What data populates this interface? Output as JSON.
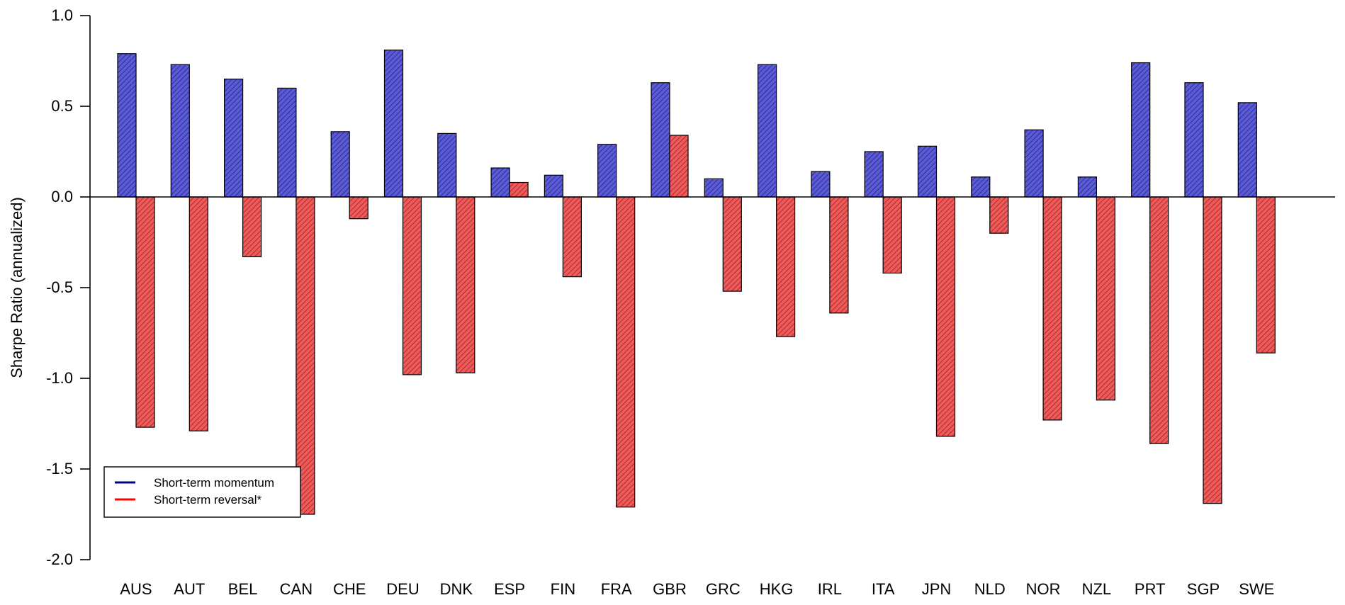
{
  "chart_data": {
    "type": "bar",
    "title": "",
    "xlabel": "",
    "ylabel": "Sharpe Ratio (annualized)",
    "ylim": [
      -2.0,
      1.0
    ],
    "yticks": [
      "1.0",
      "0.5",
      "0.0",
      "-0.5",
      "-1.0",
      "-1.5",
      "-2.0"
    ],
    "ytick_values": [
      1.0,
      0.5,
      0.0,
      -0.5,
      -1.0,
      -1.5,
      -2.0
    ],
    "grid": false,
    "legend_position": "bottom-left",
    "categories": [
      "AUS",
      "AUT",
      "BEL",
      "CAN",
      "CHE",
      "DEU",
      "DNK",
      "ESP",
      "FIN",
      "FRA",
      "GBR",
      "GRC",
      "HKG",
      "IRL",
      "ITA",
      "JPN",
      "NLD",
      "NOR",
      "NZL",
      "PRT",
      "SGP",
      "SWE"
    ],
    "series": [
      {
        "name": "Short-term momentum",
        "color": "#000080",
        "fill": "#5b5bd6",
        "values": [
          0.79,
          0.73,
          0.65,
          0.6,
          0.36,
          0.81,
          0.35,
          0.16,
          0.12,
          0.29,
          0.63,
          0.1,
          0.73,
          0.14,
          0.25,
          0.28,
          0.11,
          0.37,
          0.11,
          0.74,
          0.63,
          0.52
        ]
      },
      {
        "name": "Short-term reversal*",
        "color": "#ff0000",
        "fill": "#ef5a5a",
        "values": [
          -1.27,
          -1.29,
          -0.33,
          -1.75,
          -0.12,
          -0.98,
          -0.97,
          0.08,
          -0.44,
          -1.71,
          0.34,
          -0.52,
          -0.77,
          -0.64,
          -0.42,
          -1.32,
          -0.2,
          -1.23,
          -1.12,
          -1.36,
          -1.69,
          -0.86
        ]
      }
    ]
  }
}
